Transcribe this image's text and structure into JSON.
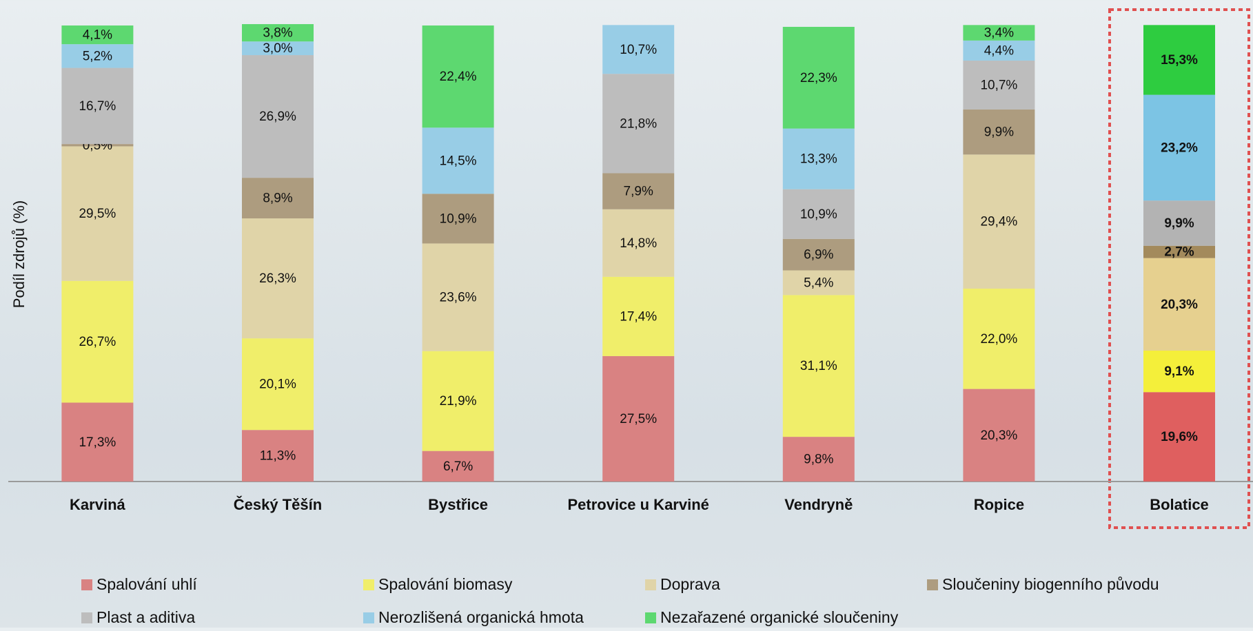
{
  "chart_data": {
    "type": "stacked-bar",
    "y_label": "Podíl zdrojů (%)",
    "categories": [
      "Karviná",
      "Český Těšín",
      "Bystřice",
      "Petrovice u Karviné",
      "Vendryně",
      "Ropice",
      "Bolatice"
    ],
    "ylim": [
      0,
      100
    ],
    "highlight_index": 6,
    "series": [
      {
        "name": "Spalování uhlí",
        "color": "#d98282",
        "highlight_color": "#df5f5f",
        "values": [
          17.3,
          11.3,
          6.7,
          27.5,
          9.8,
          20.3,
          19.6
        ],
        "value_labels": [
          "17,3%",
          "11,3%",
          "6,7%",
          "27,5%",
          "9,8%",
          "20,3%",
          "19,6%"
        ]
      },
      {
        "name": "Spalování biomasy",
        "color": "#f0ee6a",
        "highlight_color": "#f4ef3a",
        "values": [
          26.7,
          20.1,
          21.9,
          17.4,
          31.1,
          22.0,
          9.1
        ],
        "value_labels": [
          "26,7%",
          "20,1%",
          "21,9%",
          "17,4%",
          "31,1%",
          "22,0%",
          "9,1%"
        ]
      },
      {
        "name": "Doprava",
        "color": "#e0d4a8",
        "highlight_color": "#e6d08f",
        "values": [
          29.5,
          26.3,
          23.6,
          14.8,
          5.4,
          29.4,
          20.3
        ],
        "value_labels": [
          "29,5%",
          "26,3%",
          "23,6%",
          "14,8%",
          "5,4%",
          "29,4%",
          "20,3%"
        ]
      },
      {
        "name": "Sloučeniny biogenního původu",
        "color": "#ad9c7f",
        "highlight_color": "#a38a5c",
        "values": [
          0.5,
          8.9,
          10.9,
          7.9,
          6.9,
          9.9,
          2.7
        ],
        "value_labels": [
          "0,5%",
          "8,9%",
          "10,9%",
          "7,9%",
          "6,9%",
          "9,9%",
          "2,7%"
        ]
      },
      {
        "name": "Plast a aditiva",
        "color": "#bdbdbd",
        "highlight_color": "#b3b3b3",
        "values": [
          16.7,
          26.9,
          null,
          21.8,
          10.9,
          10.7,
          9.9
        ],
        "value_labels": [
          "16,7%",
          "26,9%",
          null,
          "21,8%",
          "10,9%",
          "10,7%",
          "9,9%"
        ]
      },
      {
        "name": "Nerozlišená organická hmota",
        "color": "#98cde6",
        "highlight_color": "#7cc4e4",
        "values": [
          5.2,
          3.0,
          14.5,
          10.7,
          13.3,
          4.4,
          23.2
        ],
        "value_labels": [
          "5,2%",
          "3,0%",
          "14,5%",
          "10,7%",
          "13,3%",
          "4,4%",
          "23,2%"
        ]
      },
      {
        "name": "Nezařazené organické sloučeniny",
        "color": "#5dd870",
        "highlight_color": "#2ecc40",
        "values": [
          4.1,
          3.8,
          22.4,
          null,
          22.3,
          3.4,
          15.3
        ],
        "value_labels": [
          "4,1%",
          "3,8%",
          "22,4%",
          null,
          "22,3%",
          "3,4%",
          "15,3%"
        ]
      }
    ]
  }
}
